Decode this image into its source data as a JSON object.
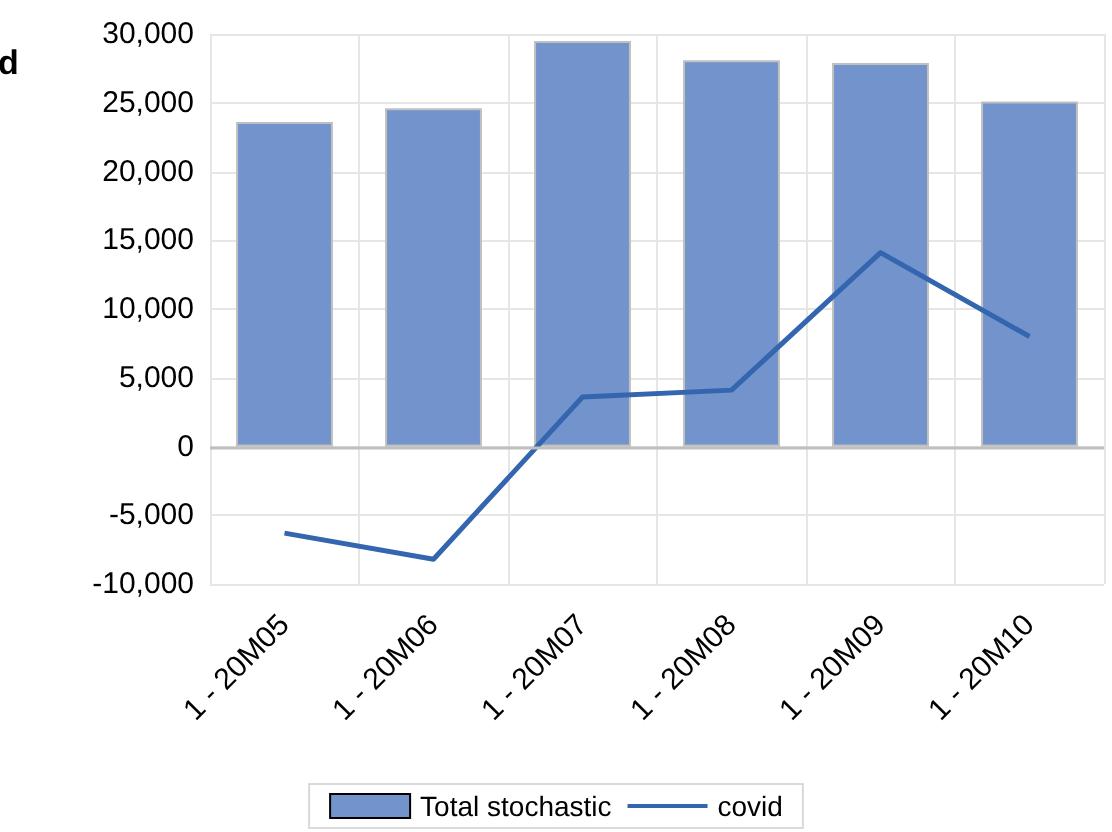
{
  "chart_data": {
    "type": "bar",
    "annotations": [
      "d"
    ],
    "categories": [
      "1 - 20M05",
      "1 - 20M06",
      "1 - 20M07",
      "1 - 20M08",
      "1 - 20M09",
      "1 - 20M10"
    ],
    "series": [
      {
        "name": "Total stochastic",
        "color": "#7293cb",
        "values": [
          23600,
          24600,
          29500,
          28100,
          27900,
          25100
        ]
      },
      {
        "name": "covid",
        "type": "line",
        "color": "#3465af",
        "values": [
          -6300,
          -8200,
          3600,
          4100,
          14100,
          8000
        ]
      }
    ],
    "ylim": [
      -10000,
      30000
    ],
    "yticks": [
      {
        "value": -10000,
        "label": "-10,000"
      },
      {
        "value": -5000,
        "label": "-5,000"
      },
      0,
      {
        "value": 5000,
        "label": "5,000"
      },
      {
        "value": 10000,
        "label": "10,000"
      },
      {
        "value": 15000,
        "label": "15,000"
      },
      {
        "value": 20000,
        "label": "20,000"
      },
      {
        "value": 25000,
        "label": "25,000"
      },
      {
        "value": 30000,
        "label": "30,000"
      }
    ],
    "grid": true,
    "legend": "bottom",
    "marker": "none"
  }
}
